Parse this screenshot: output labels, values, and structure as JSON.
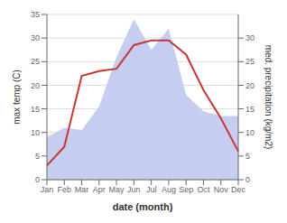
{
  "chart_data": {
    "type": "line",
    "xlabel": "date (month)",
    "ylabel": "max temp (C)",
    "y2label": "med. precipitation (kg/m2)",
    "categories": [
      "Jan",
      "Feb",
      "Mar",
      "Apr",
      "May",
      "Jun",
      "Jul",
      "Aug",
      "Sep",
      "Oct",
      "Nov",
      "Dec"
    ],
    "series": [
      {
        "type": "area",
        "axis": "y2",
        "color": "#c5cef0",
        "values": [
          9.0,
          11.0,
          10.5,
          15.5,
          26.0,
          34.0,
          27.5,
          32.0,
          18.0,
          14.5,
          13.5,
          13.5
        ]
      },
      {
        "type": "line",
        "color": "#cc3333",
        "values": [
          3.0,
          7.0,
          22.0,
          23.0,
          23.5,
          28.5,
          29.5,
          29.5,
          26.5,
          19.0,
          13.0,
          6.0
        ]
      }
    ],
    "ylim": [
      0,
      35
    ],
    "yticks": [
      0,
      5,
      10,
      15,
      20,
      25,
      30,
      35
    ],
    "y2lim": [
      0,
      35
    ],
    "y2ticks": [
      0,
      5,
      10,
      15,
      20,
      25,
      30
    ],
    "grid": true
  }
}
